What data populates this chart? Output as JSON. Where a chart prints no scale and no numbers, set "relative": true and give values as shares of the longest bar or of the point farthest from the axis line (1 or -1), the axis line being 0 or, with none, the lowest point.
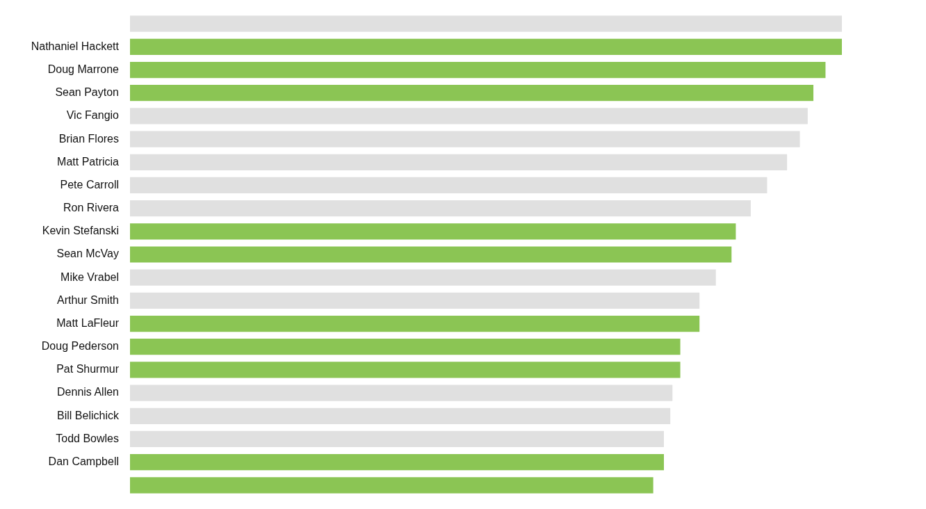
{
  "chart_data": {
    "type": "bar",
    "orientation": "horizontal",
    "relative": true,
    "categories": [
      null,
      "Nathaniel Hackett",
      "Doug Marrone",
      "Sean Payton",
      "Vic Fangio",
      "Brian Flores",
      "Matt Patricia",
      "Pete Carroll",
      "Ron Rivera",
      "Kevin Stefanski",
      "Sean McVay",
      "Mike Vrabel",
      "Arthur Smith",
      "Matt LaFleur",
      "Doug Pederson",
      "Pat Shurmur",
      "Dennis Allen",
      "Bill Belichick",
      "Todd Bowles",
      "Dan Campbell",
      null
    ],
    "values": [
      1.0,
      1.0,
      0.977,
      0.96,
      0.952,
      0.941,
      0.923,
      0.895,
      0.872,
      0.851,
      0.845,
      0.823,
      0.8,
      0.8,
      0.773,
      0.773,
      0.762,
      0.759,
      0.75,
      0.75,
      0.735
    ],
    "colors": [
      "#e0e0e0",
      "#8bc554",
      "#8bc554",
      "#8bc554",
      "#e0e0e0",
      "#e0e0e0",
      "#e0e0e0",
      "#e0e0e0",
      "#e0e0e0",
      "#8bc554",
      "#8bc554",
      "#e0e0e0",
      "#e0e0e0",
      "#8bc554",
      "#8bc554",
      "#8bc554",
      "#e0e0e0",
      "#e0e0e0",
      "#e0e0e0",
      "#8bc554",
      "#8bc554"
    ]
  }
}
